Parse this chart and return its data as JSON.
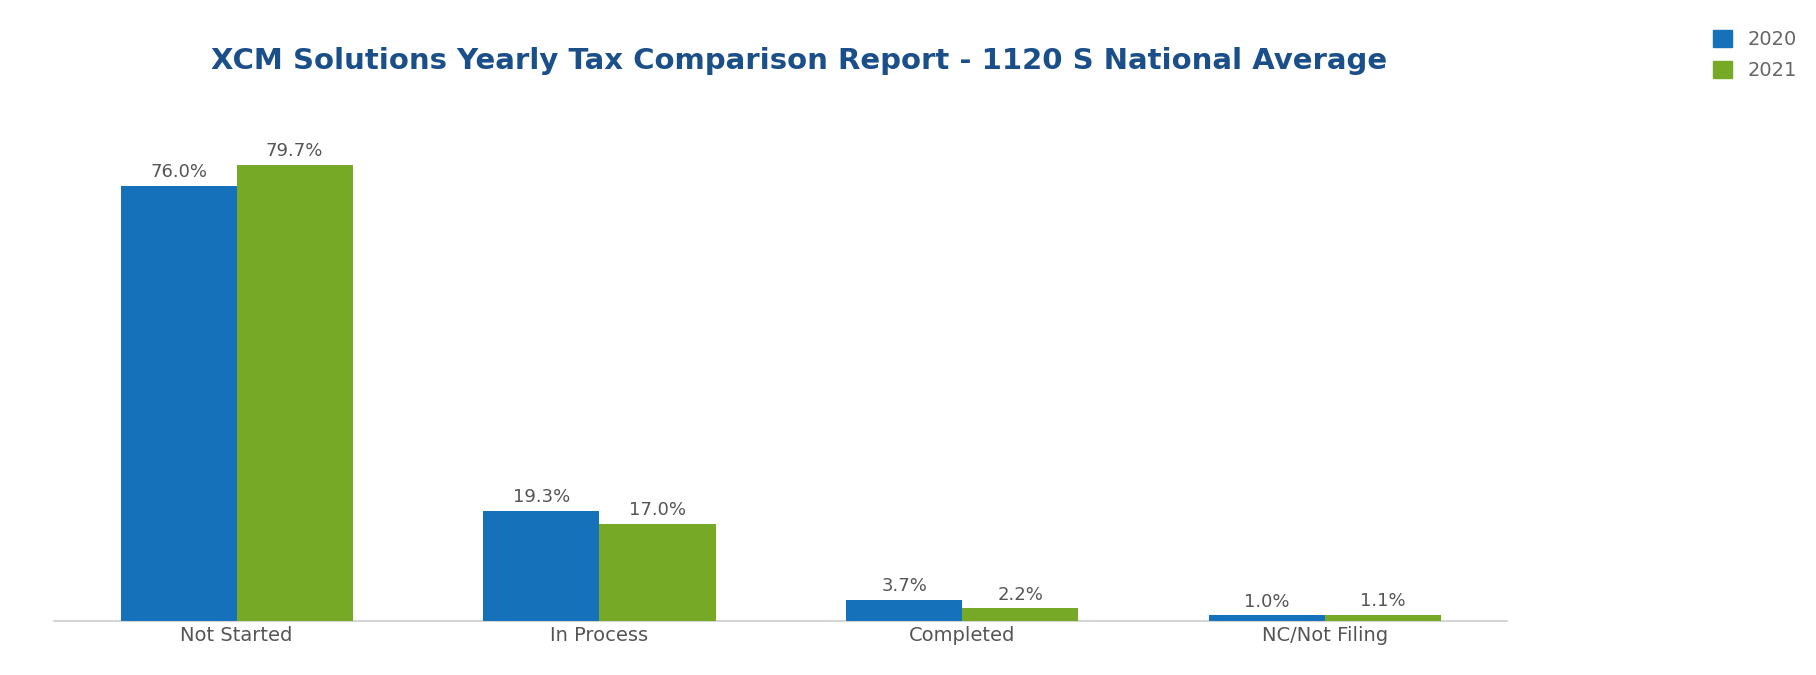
{
  "title": "XCM Solutions Yearly Tax Comparison Report - 1120 S National Average",
  "categories": [
    "Not Started",
    "In Process",
    "Completed",
    "NC/Not Filing"
  ],
  "values_2020": [
    76.0,
    19.3,
    3.7,
    1.0
  ],
  "values_2021": [
    79.7,
    17.0,
    2.2,
    1.1
  ],
  "color_2020": "#1572BA",
  "color_2021": "#76AA26",
  "legend_labels": [
    "2020",
    "2021"
  ],
  "legend_text_color": "#666666",
  "ylim": [
    0,
    92
  ],
  "bar_width": 0.32,
  "title_color": "#1A4F8A",
  "title_fontsize": 21,
  "label_fontsize": 14,
  "tick_fontsize": 14,
  "annotation_fontsize": 13,
  "background_color": "#FFFFFF",
  "spine_color": "#CCCCCC"
}
